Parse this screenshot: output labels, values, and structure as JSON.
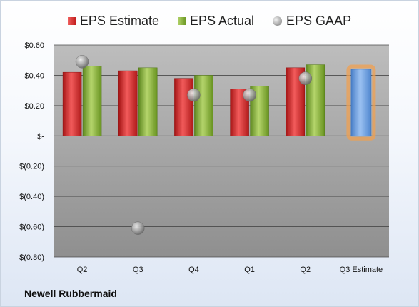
{
  "company": "Newell Rubbermaid",
  "legend": {
    "estimate": "EPS Estimate",
    "actual": "EPS Actual",
    "gaap": "EPS GAAP"
  },
  "colors": {
    "estimate": "#d42a2a",
    "actual": "#86ad3c",
    "gaap": "#a0a0a0",
    "projection": "#6a9fe0",
    "projection_glow": "#f0a050",
    "plot_bg": "#a6a6a6"
  },
  "chart_data": {
    "type": "bar",
    "categories": [
      "Q2",
      "Q3",
      "Q4",
      "Q1",
      "Q2",
      "Q3 Estimate"
    ],
    "y_tick_labels": [
      "$0.60",
      "$0.40",
      "$0.20",
      "$-",
      "$(0.20)",
      "$(0.40)",
      "$(0.60)",
      "$(0.80)"
    ],
    "y_tick_values": [
      0.6,
      0.4,
      0.2,
      0,
      -0.2,
      -0.4,
      -0.6,
      -0.8
    ],
    "ylim": [
      -0.8,
      0.6
    ],
    "grid": true,
    "legend_position": "top",
    "series": [
      {
        "name": "EPS Estimate",
        "type": "bar",
        "values": [
          0.42,
          0.43,
          0.38,
          0.31,
          0.45,
          null
        ]
      },
      {
        "name": "EPS Actual",
        "type": "bar",
        "values": [
          0.46,
          0.45,
          0.4,
          0.33,
          0.47,
          null
        ]
      },
      {
        "name": "EPS GAAP",
        "type": "scatter",
        "values": [
          0.49,
          -0.61,
          0.27,
          0.27,
          0.38,
          null
        ]
      }
    ],
    "projection": {
      "category": "Q3 Estimate",
      "value": 0.44
    }
  }
}
